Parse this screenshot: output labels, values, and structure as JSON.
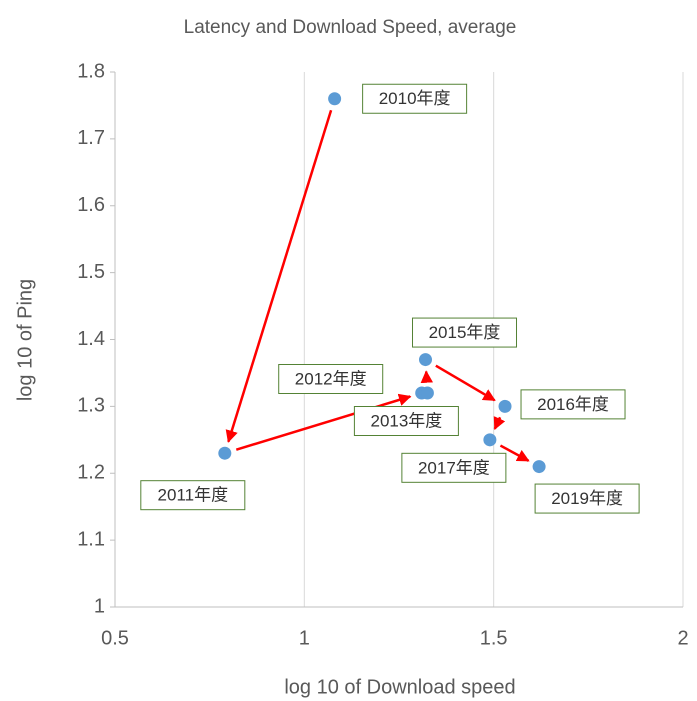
{
  "chart_data": {
    "type": "scatter",
    "title": "Latency and Download Speed, average",
    "x_label": "log 10 of Download speed",
    "y_label": "log 10 of Ping",
    "series": [
      {
        "name": "",
        "color": "#5b9bd5",
        "labels": [
          "2010年度",
          "2011年度",
          "2012年度",
          "2013年度",
          "2015年度",
          "2016年度",
          "2017年度",
          "2019年度"
        ],
        "x": [
          1.08,
          0.79,
          1.31,
          1.325,
          1.32,
          1.53,
          1.49,
          1.62
        ],
        "values": [
          1.76,
          1.23,
          1.32,
          1.32,
          1.37,
          1.3,
          1.25,
          1.21
        ]
      }
    ],
    "xlim": [
      0.5,
      2
    ],
    "xticks": [
      0.5,
      1,
      1.5,
      2
    ],
    "ylim": [
      1,
      1.8
    ],
    "yticks": [
      1,
      1.1,
      1.2,
      1.3,
      1.4,
      1.5,
      1.6,
      1.7,
      1.8
    ],
    "grid": true,
    "arrow_color": "#ff0000"
  }
}
